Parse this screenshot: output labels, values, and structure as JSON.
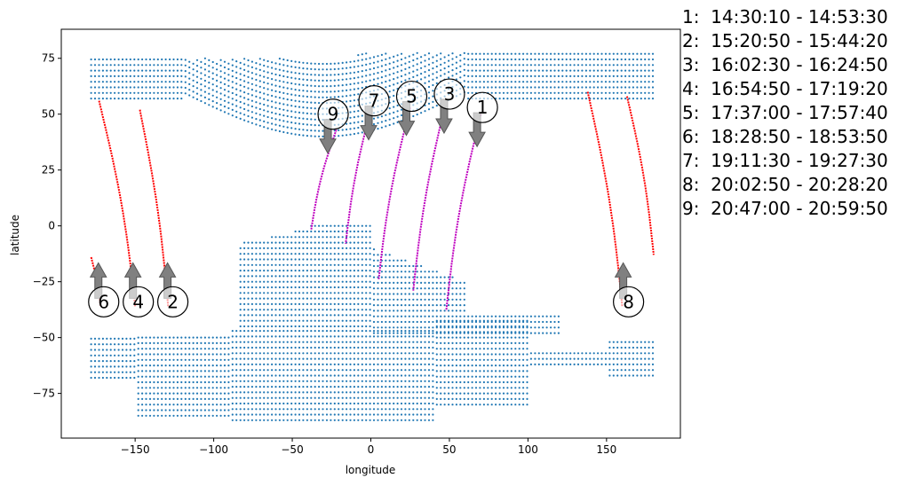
{
  "chart_data": {
    "type": "scatter",
    "xlabel": "longitude",
    "ylabel": "latitude",
    "xlim": [
      -197,
      197
    ],
    "ylim": [
      -95,
      88
    ],
    "xticks": [
      -150,
      -100,
      -50,
      0,
      50,
      100,
      150
    ],
    "yticks": [
      -75,
      -50,
      -25,
      0,
      25,
      50,
      75
    ],
    "grid": false,
    "colors": {
      "points": "#1f77b4",
      "tracks_red": "#ff0000",
      "tracks_magenta": "#bf00bf",
      "arrow": "#808080"
    },
    "background_regions": [
      {
        "name": "northern-band",
        "lon": [
          -178,
          180
        ],
        "lat_min": 57,
        "lat_max_west": 76,
        "lat_max_east": 78
      },
      {
        "name": "northern-dip",
        "lon": [
          -120,
          60
        ],
        "lat": [
          38,
          60
        ]
      },
      {
        "name": "southern-region",
        "lon": [
          -178,
          180
        ],
        "lat": [
          -87,
          -30
        ]
      },
      {
        "name": "central-region",
        "lon": [
          -85,
          120
        ],
        "lat": [
          -45,
          3
        ]
      }
    ],
    "tracks": [
      {
        "id": "1",
        "color": "red-magenta",
        "lon": [
          70,
          48
        ],
        "lat": [
          50,
          -38
        ]
      },
      {
        "id": "2",
        "color": "red",
        "lon": [
          -147,
          -129
        ],
        "lat": [
          52,
          -36
        ]
      },
      {
        "id": "3",
        "color": "magenta",
        "lon": [
          48,
          27
        ],
        "lat": [
          56,
          -29
        ]
      },
      {
        "id": "4",
        "color": "red",
        "lon": [
          -173,
          -150
        ],
        "lat": [
          56,
          -36
        ]
      },
      {
        "id": "5",
        "color": "magenta",
        "lon": [
          25,
          5
        ],
        "lat": [
          53,
          -24
        ]
      },
      {
        "id": "6",
        "color": "red",
        "lon": [
          -178,
          -172
        ],
        "lat": [
          -14,
          -36
        ]
      },
      {
        "id": "7",
        "color": "magenta",
        "lon": [
          0,
          -16
        ],
        "lat": [
          52,
          -8
        ]
      },
      {
        "id": "8",
        "color": "red",
        "lon": [
          138,
          160
        ],
        "lat": [
          60,
          -36
        ]
      },
      {
        "id": "8b",
        "color": "red",
        "lon": [
          163,
          180
        ],
        "lat": [
          58,
          -13
        ]
      },
      {
        "id": "9",
        "color": "magenta",
        "lon": [
          -22,
          -38
        ],
        "lat": [
          43,
          -2
        ]
      }
    ],
    "markers": [
      {
        "label": "1",
        "lon": 71,
        "lat": 53,
        "direction": "down"
      },
      {
        "label": "2",
        "lon": -126,
        "lat": -34,
        "direction": "up"
      },
      {
        "label": "3",
        "lon": 50,
        "lat": 59,
        "direction": "down"
      },
      {
        "label": "4",
        "lon": -148,
        "lat": -34,
        "direction": "up"
      },
      {
        "label": "5",
        "lon": 26,
        "lat": 58,
        "direction": "down"
      },
      {
        "label": "6",
        "lon": -170,
        "lat": -34,
        "direction": "up"
      },
      {
        "label": "7",
        "lon": 2,
        "lat": 56,
        "direction": "down"
      },
      {
        "label": "8",
        "lon": 164,
        "lat": -34,
        "direction": "up"
      },
      {
        "label": "9",
        "lon": -24,
        "lat": 50,
        "direction": "down"
      }
    ]
  },
  "legend": [
    {
      "id": "1",
      "text": "1:  14:30:10 - 14:53:30"
    },
    {
      "id": "2",
      "text": "2:  15:20:50 - 15:44:20"
    },
    {
      "id": "3",
      "text": "3:  16:02:30 - 16:24:50"
    },
    {
      "id": "4",
      "text": "4:  16:54:50 - 17:19:20"
    },
    {
      "id": "5",
      "text": "5:  17:37:00 - 17:57:40"
    },
    {
      "id": "6",
      "text": "6:  18:28:50 - 18:53:50"
    },
    {
      "id": "7",
      "text": "7:  19:11:30 - 19:27:30"
    },
    {
      "id": "8",
      "text": "8:  20:02:50 - 20:28:20"
    },
    {
      "id": "9",
      "text": "9:  20:47:00 - 20:59:50"
    }
  ]
}
